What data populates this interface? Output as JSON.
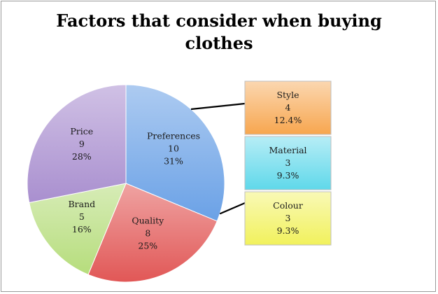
{
  "chart_data": {
    "type": "pie",
    "title_lines": [
      "Factors that consider when buying",
      "clothes"
    ],
    "slices": [
      {
        "label": "Preferences",
        "value": 10,
        "percent": "31%",
        "color": "#6aa1e6"
      },
      {
        "label": "Quality",
        "value": 8,
        "percent": "25%",
        "color": "#e15756"
      },
      {
        "label": "Brand",
        "value": 5,
        "percent": "16%",
        "color": "#b6dd7c"
      },
      {
        "label": "Price",
        "value": 9,
        "percent": "28%",
        "color": "#a98fcf"
      }
    ],
    "breakdown_of": "Preferences",
    "breakdown": [
      {
        "label": "Style",
        "value": 4,
        "percent": "12.4%",
        "color": "#f7a64f"
      },
      {
        "label": "Material",
        "value": 3,
        "percent": "9.3%",
        "color": "#5fd8ea"
      },
      {
        "label": "Colour",
        "value": 3,
        "percent": "9.3%",
        "color": "#f1f15c"
      }
    ]
  }
}
